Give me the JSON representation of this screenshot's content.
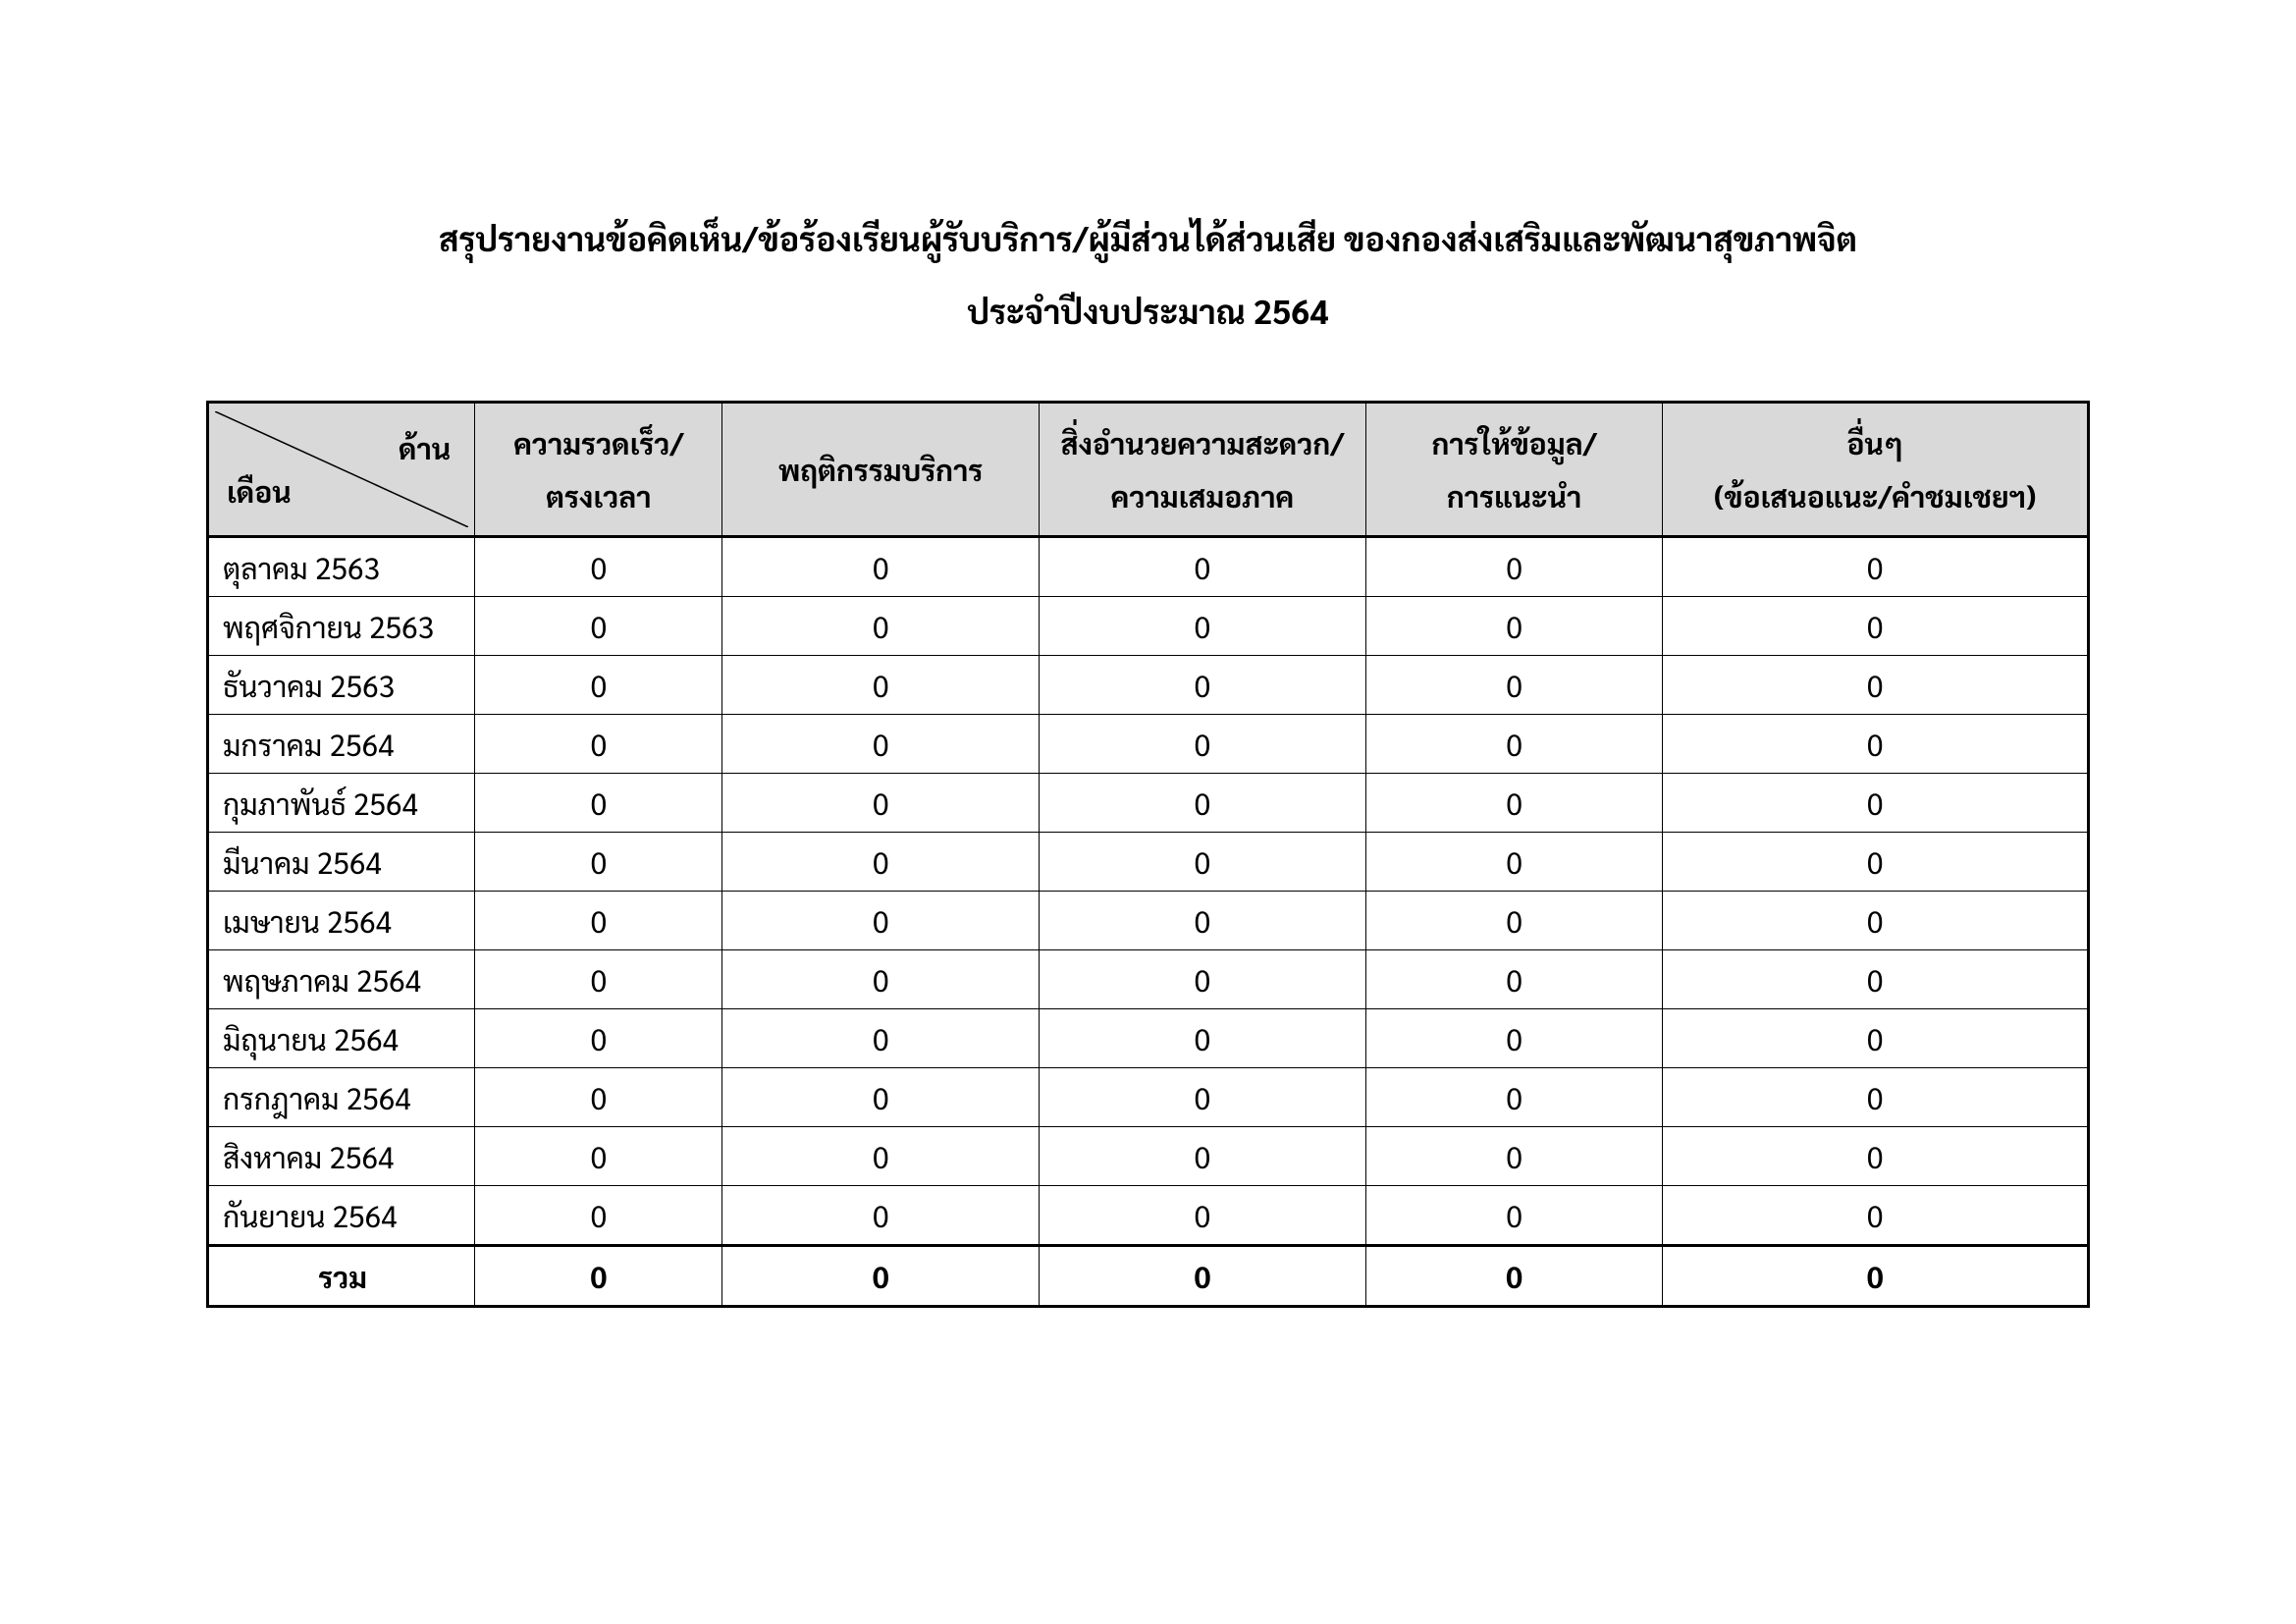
{
  "title": "สรุปรายงานข้อคิดเห็น/ข้อร้องเรียนผู้รับบริการ/ผู้มีส่วนได้ส่วนเสีย ของกองส่งเสริมและพัฒนาสุขภาพจิต",
  "subtitle": "ประจำปีงบประมาณ 2564",
  "table": {
    "type": "table",
    "header_bg": "#d9d9d9",
    "border_color": "#000000",
    "font_size_header": 30,
    "font_size_body": 30,
    "diag_header": {
      "top": "ด้าน",
      "bottom": "เดือน"
    },
    "columns": [
      {
        "label_line1": "ความรวดเร็ว/",
        "label_line2": "ตรงเวลา"
      },
      {
        "label_line1": "พฤติกรรมบริการ",
        "label_line2": ""
      },
      {
        "label_line1": "สิ่งอำนวยความสะดวก/",
        "label_line2": "ความเสมอภาค"
      },
      {
        "label_line1": "การให้ข้อมูล/",
        "label_line2": "การแนะนำ"
      },
      {
        "label_line1": "อื่นๆ",
        "label_line2": "(ข้อเสนอแนะ/คำชมเชยฯ)"
      }
    ],
    "rows": [
      {
        "month": "ตุลาคม 2563",
        "v": [
          0,
          0,
          0,
          0,
          0
        ]
      },
      {
        "month": "พฤศจิกายน 2563",
        "v": [
          0,
          0,
          0,
          0,
          0
        ]
      },
      {
        "month": "ธันวาคม 2563",
        "v": [
          0,
          0,
          0,
          0,
          0
        ]
      },
      {
        "month": "มกราคม 2564",
        "v": [
          0,
          0,
          0,
          0,
          0
        ]
      },
      {
        "month": "กุมภาพันธ์ 2564",
        "v": [
          0,
          0,
          0,
          0,
          0
        ]
      },
      {
        "month": "มีนาคม 2564",
        "v": [
          0,
          0,
          0,
          0,
          0
        ]
      },
      {
        "month": "เมษายน 2564",
        "v": [
          0,
          0,
          0,
          0,
          0
        ]
      },
      {
        "month": "พฤษภาคม 2564",
        "v": [
          0,
          0,
          0,
          0,
          0
        ]
      },
      {
        "month": "มิถุนายน 2564",
        "v": [
          0,
          0,
          0,
          0,
          0
        ]
      },
      {
        "month": "กรกฎาคม 2564",
        "v": [
          0,
          0,
          0,
          0,
          0
        ]
      },
      {
        "month": "สิงหาคม 2564",
        "v": [
          0,
          0,
          0,
          0,
          0
        ]
      },
      {
        "month": "กันยายน 2564",
        "v": [
          0,
          0,
          0,
          0,
          0
        ]
      }
    ],
    "total": {
      "label": "รวม",
      "v": [
        0,
        0,
        0,
        0,
        0
      ]
    }
  }
}
